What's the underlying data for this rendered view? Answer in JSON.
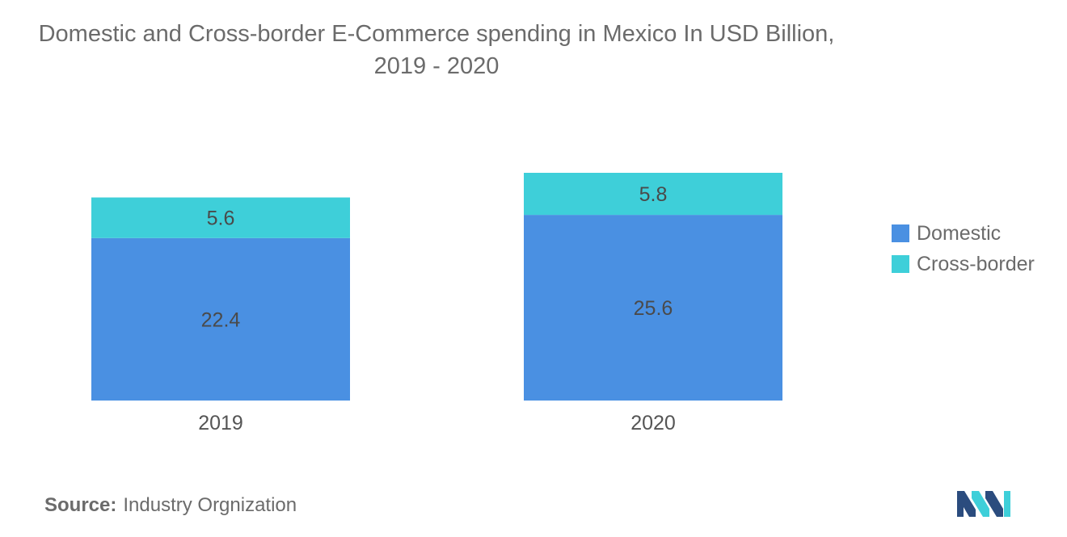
{
  "chart_data": {
    "type": "bar",
    "stacked": true,
    "title": "Domestic and Cross-border E-Commerce spending in Mexico In USD Billion, 2019 - 2020",
    "categories": [
      "2019",
      "2020"
    ],
    "series": [
      {
        "name": "Domestic",
        "values": [
          22.4,
          25.6
        ],
        "color": "#4a90e2"
      },
      {
        "name": "Cross-border",
        "values": [
          5.6,
          5.8
        ],
        "color": "#3ecfd9"
      }
    ],
    "ylim": [
      0,
      31.4
    ],
    "grid": false,
    "legend_position": "right",
    "xlabel": "",
    "ylabel": ""
  },
  "source": {
    "label": "Source:",
    "text": "Industry Orgnization"
  },
  "logo": {
    "icon": "mordor-intelligence-logo-icon",
    "colors": [
      "#2b4c7e",
      "#3ecfd9"
    ]
  }
}
